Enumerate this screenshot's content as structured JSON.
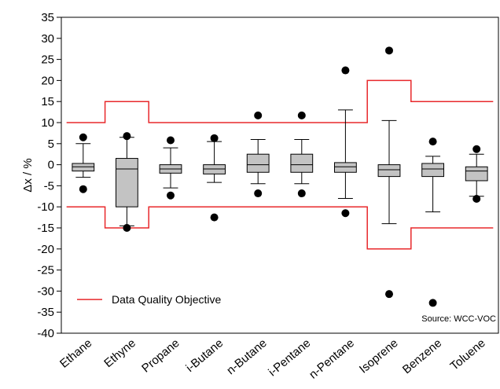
{
  "chart_data": {
    "type": "box",
    "ylabel": "Δx / %",
    "ylim": [
      -40,
      35
    ],
    "yticks": [
      35,
      30,
      25,
      20,
      15,
      10,
      5,
      0,
      -5,
      -10,
      -15,
      -20,
      -25,
      -30,
      -35,
      -40
    ],
    "categories": [
      "Ethane",
      "Ethyne",
      "Propane",
      "i-Butane",
      "n-Butane",
      "i-Pentane",
      "n-Pentane",
      "Isoprene",
      "Benzene",
      "Toluene"
    ],
    "boxes": [
      {
        "whisker_low": -3,
        "q1": -1.5,
        "median": -0.5,
        "q3": 0.3,
        "whisker_high": 5,
        "outliers": [
          6.5,
          -5.8
        ]
      },
      {
        "whisker_low": -14.5,
        "q1": -10,
        "median": -1,
        "q3": 1.5,
        "whisker_high": 6.5,
        "outliers": [
          6.8,
          -15
        ]
      },
      {
        "whisker_low": -5.5,
        "q1": -2,
        "median": -1,
        "q3": 0,
        "whisker_high": 4,
        "outliers": [
          5.8,
          -7.3
        ]
      },
      {
        "whisker_low": -4.2,
        "q1": -2.2,
        "median": -1,
        "q3": 0,
        "whisker_high": 5.5,
        "outliers": [
          6.3,
          -12.5
        ]
      },
      {
        "whisker_low": -4.5,
        "q1": -1.8,
        "median": 0,
        "q3": 2.5,
        "whisker_high": 6,
        "outliers": [
          11.7,
          -6.8
        ]
      },
      {
        "whisker_low": -4.5,
        "q1": -1.8,
        "median": 0,
        "q3": 2.5,
        "whisker_high": 6,
        "outliers": [
          11.7,
          -6.8
        ]
      },
      {
        "whisker_low": -8,
        "q1": -1.8,
        "median": -0.5,
        "q3": 0.5,
        "whisker_high": 13,
        "outliers": [
          22.4,
          -11.5
        ]
      },
      {
        "whisker_low": -14,
        "q1": -2.8,
        "median": -1.2,
        "q3": 0,
        "whisker_high": 10.5,
        "outliers": [
          27.1,
          -30.7
        ]
      },
      {
        "whisker_low": -11.2,
        "q1": -2.8,
        "median": -1,
        "q3": 0.3,
        "whisker_high": 2,
        "outliers": [
          5.5,
          -32.8
        ]
      },
      {
        "whisker_low": -7.5,
        "q1": -3.8,
        "median": -1.5,
        "q3": -0.5,
        "whisker_high": 2.5,
        "outliers": [
          3.7,
          -8.1
        ]
      }
    ],
    "dqo_series": {
      "name": "Data Quality Objective",
      "color": "#e8282b",
      "upper": [
        10,
        15,
        10,
        10,
        10,
        10,
        10,
        20,
        15,
        15
      ],
      "lower": [
        -10,
        -15,
        -10,
        -10,
        -10,
        -10,
        -10,
        -20,
        -15,
        -15
      ]
    },
    "legend_position": "bottom-left",
    "source_label": "Source: WCC-VOC"
  }
}
